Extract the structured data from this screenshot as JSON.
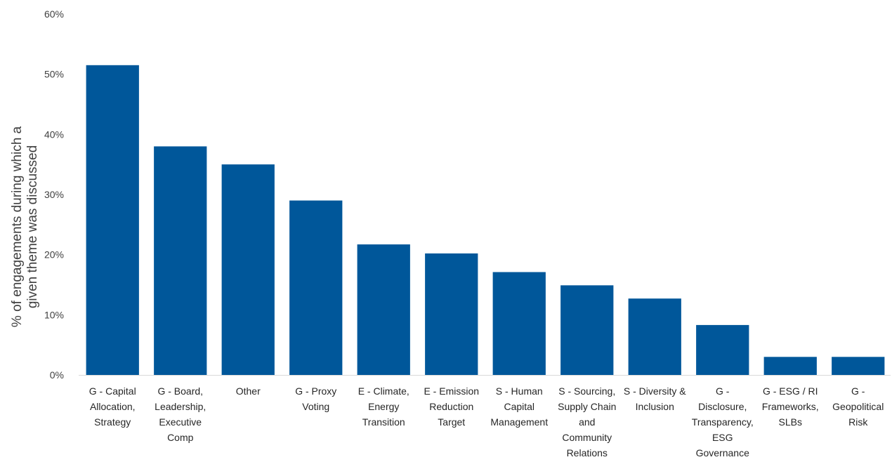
{
  "chart_data": {
    "type": "bar",
    "title": "",
    "xlabel": "",
    "ylabel_lines": [
      "% of engagements during which a",
      "given theme was discussed"
    ],
    "ylim": [
      0,
      60
    ],
    "ytick_values": [
      0,
      10,
      20,
      30,
      40,
      50,
      60
    ],
    "ytick_labels": [
      "0%",
      "10%",
      "20%",
      "30%",
      "40%",
      "50%",
      "60%"
    ],
    "grid": false,
    "legend": "none",
    "bar_color": "#00579a",
    "categories": [
      [
        "G - Capital",
        "Allocation,",
        "Strategy"
      ],
      [
        "G - Board,",
        "Leadership,",
        "Executive",
        "Comp"
      ],
      [
        "Other"
      ],
      [
        "G - Proxy",
        "Voting"
      ],
      [
        "E - Climate,",
        "Energy",
        "Transition"
      ],
      [
        "E - Emission",
        "Reduction",
        "Target"
      ],
      [
        "S - Human",
        "Capital",
        "Management"
      ],
      [
        "S - Sourcing,",
        "Supply Chain",
        "and",
        "Community",
        "Relations"
      ],
      [
        "S - Diversity &",
        "Inclusion"
      ],
      [
        "G -",
        "Disclosure,",
        "Transparency,",
        "ESG",
        "Governance"
      ],
      [
        "G - ESG / RI",
        "Frameworks,",
        "SLBs"
      ],
      [
        "G -",
        "Geopolitical",
        "Risk"
      ]
    ],
    "values": [
      51.5,
      38.0,
      35.0,
      29.0,
      21.7,
      20.2,
      17.1,
      14.9,
      12.7,
      8.3,
      3.0,
      3.0
    ]
  }
}
